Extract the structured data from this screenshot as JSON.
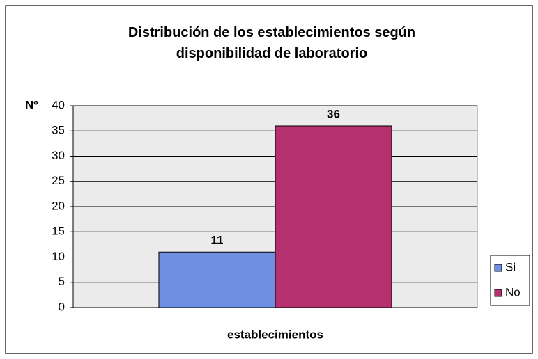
{
  "chart_data": {
    "type": "bar",
    "title": "Distribución de los establecimientos según disponibilidad de laboratorio",
    "y_label": "Nº",
    "categories": [
      "establecimientos"
    ],
    "series": [
      {
        "name": "Si",
        "color": "#6f8fe3",
        "values": [
          11
        ]
      },
      {
        "name": "No",
        "color": "#b5306f",
        "values": [
          36
        ]
      }
    ],
    "ylim": [
      0,
      40
    ],
    "yticks": [
      0,
      5,
      10,
      15,
      20,
      25,
      30,
      35,
      40
    ],
    "grid": true,
    "legend": "right"
  }
}
